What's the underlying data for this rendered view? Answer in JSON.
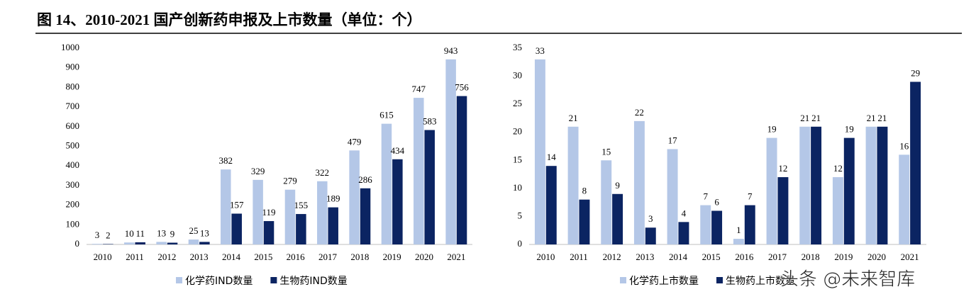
{
  "header": {
    "title": "图 14、2010-2021 国产创新药申报及上市数量（单位：个）"
  },
  "watermark": "头条 @未来智库",
  "chart_data": [
    {
      "type": "bar",
      "categories": [
        "2010",
        "2011",
        "2012",
        "2013",
        "2014",
        "2015",
        "2016",
        "2017",
        "2018",
        "2019",
        "2020",
        "2021"
      ],
      "series": [
        {
          "name": "化学药IND数量",
          "color": "#b4c7e7",
          "values": [
            3,
            10,
            13,
            25,
            382,
            329,
            279,
            322,
            479,
            615,
            747,
            943
          ]
        },
        {
          "name": "生物药IND数量",
          "color": "#0b2462",
          "values": [
            2,
            11,
            9,
            13,
            157,
            119,
            155,
            189,
            286,
            434,
            583,
            756
          ]
        }
      ],
      "ylim": [
        0,
        1000
      ],
      "yticks": [
        0,
        100,
        200,
        300,
        400,
        500,
        600,
        700,
        800,
        900,
        1000
      ],
      "grid": false,
      "legend": "bottom"
    },
    {
      "type": "bar",
      "categories": [
        "2010",
        "2011",
        "2012",
        "2013",
        "2014",
        "2015",
        "2016",
        "2017",
        "2018",
        "2019",
        "2020",
        "2021"
      ],
      "series": [
        {
          "name": "化学药上市数量",
          "color": "#b4c7e7",
          "values": [
            33,
            21,
            15,
            22,
            17,
            7,
            1,
            19,
            21,
            12,
            21,
            16
          ]
        },
        {
          "name": "生物药上市数量",
          "color": "#0b2462",
          "values": [
            14,
            8,
            9,
            3,
            4,
            6,
            7,
            12,
            21,
            19,
            21,
            29
          ]
        }
      ],
      "ylim": [
        0,
        35
      ],
      "yticks": [
        0,
        5,
        10,
        15,
        20,
        25,
        30,
        35
      ],
      "grid": false,
      "legend": "bottom"
    }
  ]
}
